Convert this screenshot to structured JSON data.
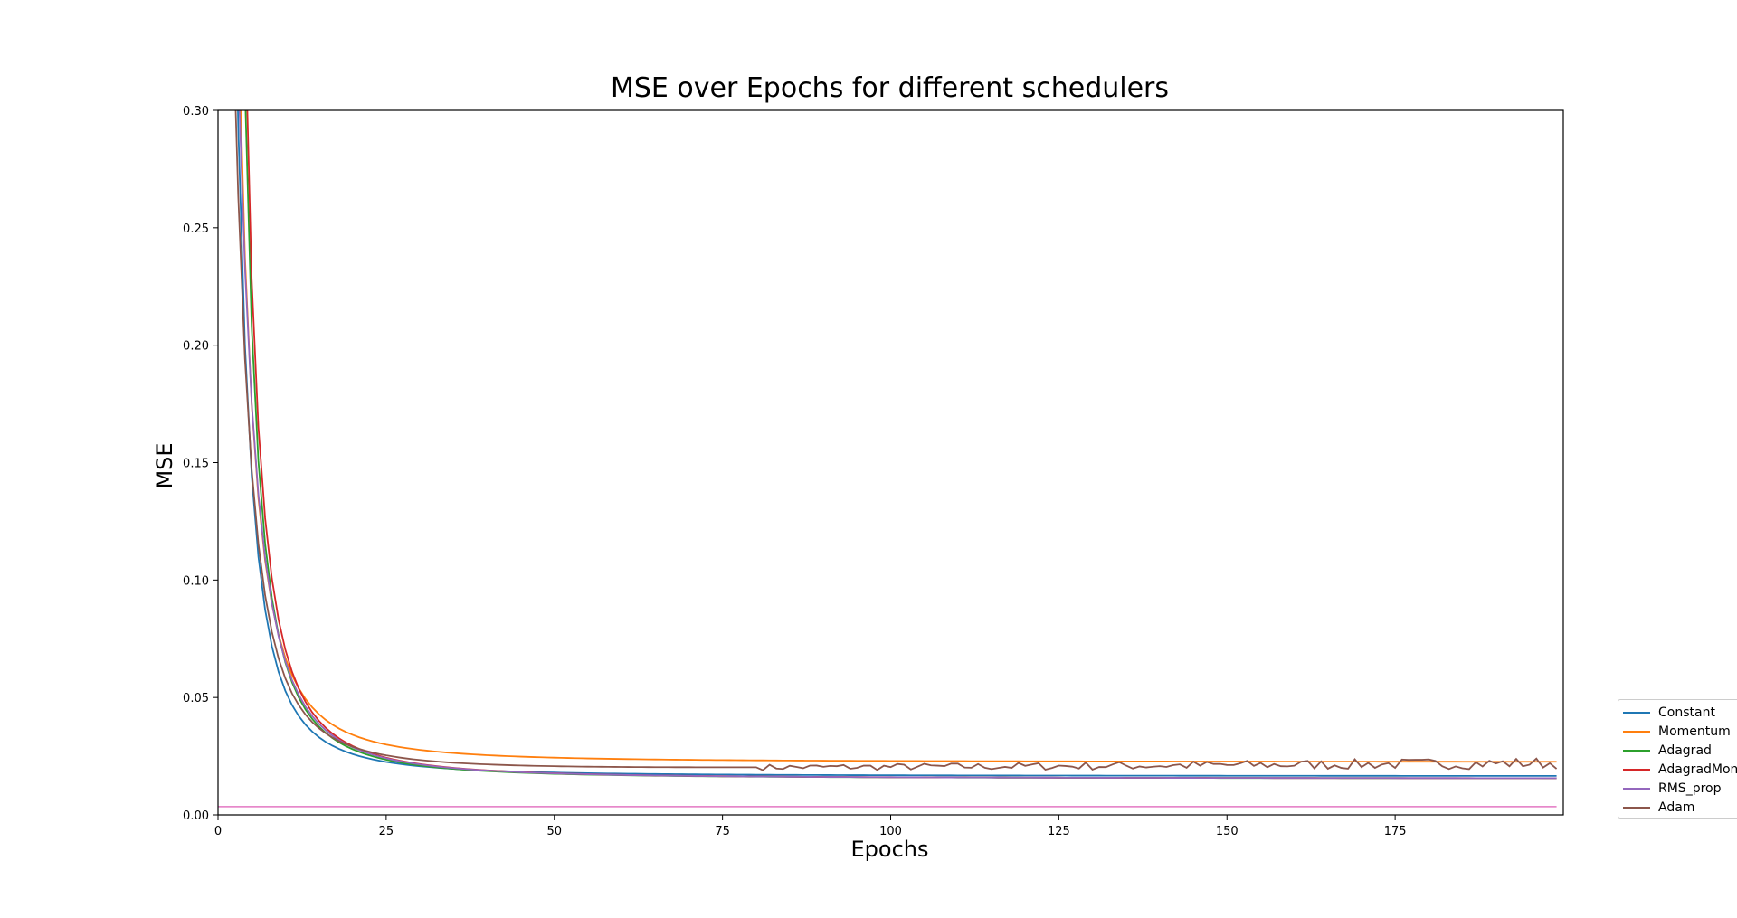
{
  "chart_data": {
    "type": "line",
    "title": "MSE over Epochs for different schedulers",
    "xlabel": "Epochs",
    "ylabel": "MSE",
    "xlim": [
      0,
      200
    ],
    "ylim": [
      0,
      0.3
    ],
    "xticks": [
      "0",
      "25",
      "50",
      "75",
      "100",
      "125",
      "150",
      "175"
    ],
    "yticks": [
      "0.00",
      "0.05",
      "0.10",
      "0.15",
      "0.20",
      "0.25",
      "0.30"
    ],
    "grid": false,
    "legend_position": "lower-right outside",
    "reference_line": {
      "y": 0.0035,
      "color": "#e377c2"
    },
    "series": [
      {
        "name": "Constant",
        "color": "#1f77b4",
        "start": 0.8,
        "k": 0.21,
        "floor": 0.0165,
        "rate": 0.0,
        "noise": 0
      },
      {
        "name": "Momentum",
        "color": "#ff7f0e",
        "start": 0.8,
        "k": 0.17,
        "floor": 0.0225,
        "rate": 0.0,
        "noise": 0
      },
      {
        "name": "Adagrad",
        "color": "#2ca02c",
        "start": 5.0,
        "k": 1.0,
        "floor": 0.0155,
        "rate": 0.0,
        "noise": 0
      },
      {
        "name": "AdagradMomentum",
        "color": "#d62728",
        "start": 5.0,
        "k": 0.9,
        "floor": 0.0155,
        "rate": 0.0,
        "noise": 0
      },
      {
        "name": "RMS_prop",
        "color": "#9467bd",
        "start": 0.6,
        "k": 0.11,
        "floor": 0.0155,
        "rate": 0.0,
        "noise": 0
      },
      {
        "name": "Adam",
        "color": "#8c564b",
        "start": 0.5,
        "k": 0.115,
        "floor": 0.018,
        "rate": 2e-05,
        "noise": 0.0025
      }
    ]
  }
}
